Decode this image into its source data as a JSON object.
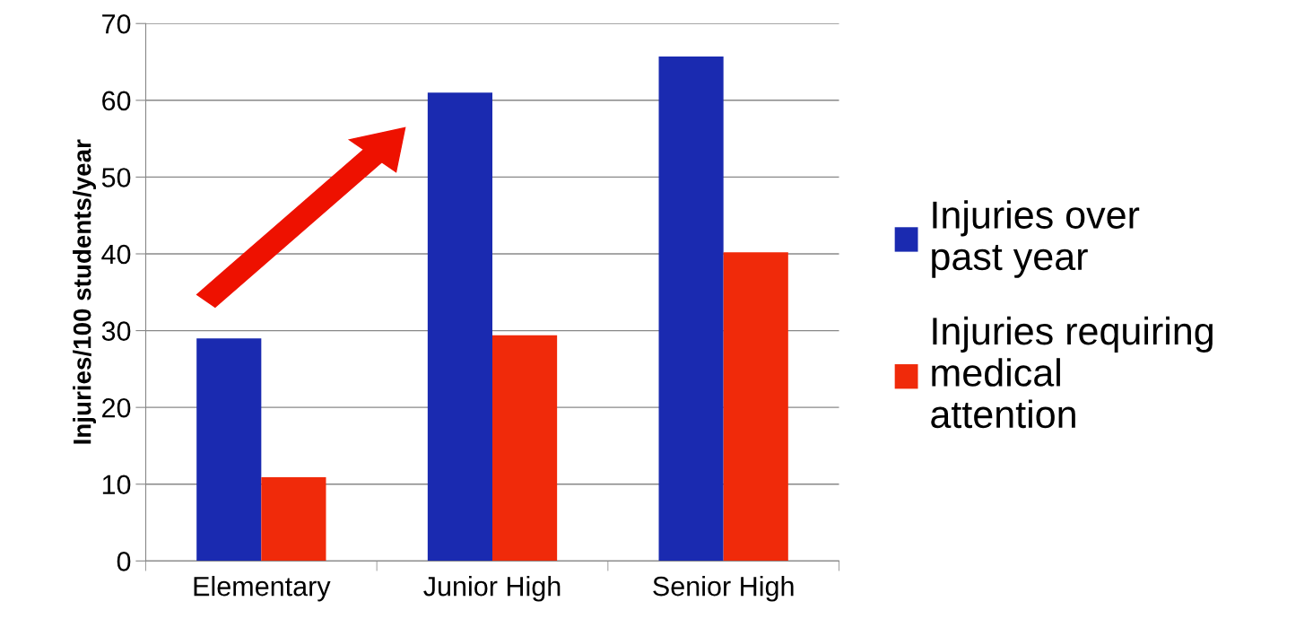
{
  "chart_data": {
    "type": "bar",
    "categories": [
      "Elementary",
      "Junior High",
      "Senior High"
    ],
    "ylabel": "Injuries/100 students/year",
    "ylim": [
      0,
      70
    ],
    "yticks": [
      0,
      10,
      20,
      30,
      40,
      50,
      60,
      70
    ],
    "grid": "y",
    "legend": "right",
    "series": [
      {
        "name": "Injuries over\npast year",
        "color": "#1a2ab0",
        "values": [
          29,
          61,
          65.7
        ]
      },
      {
        "name": "Injuries requiring\nmedical\nattention",
        "color": "#f02a0a",
        "values": [
          10.9,
          29.4,
          40.2
        ]
      }
    ]
  }
}
